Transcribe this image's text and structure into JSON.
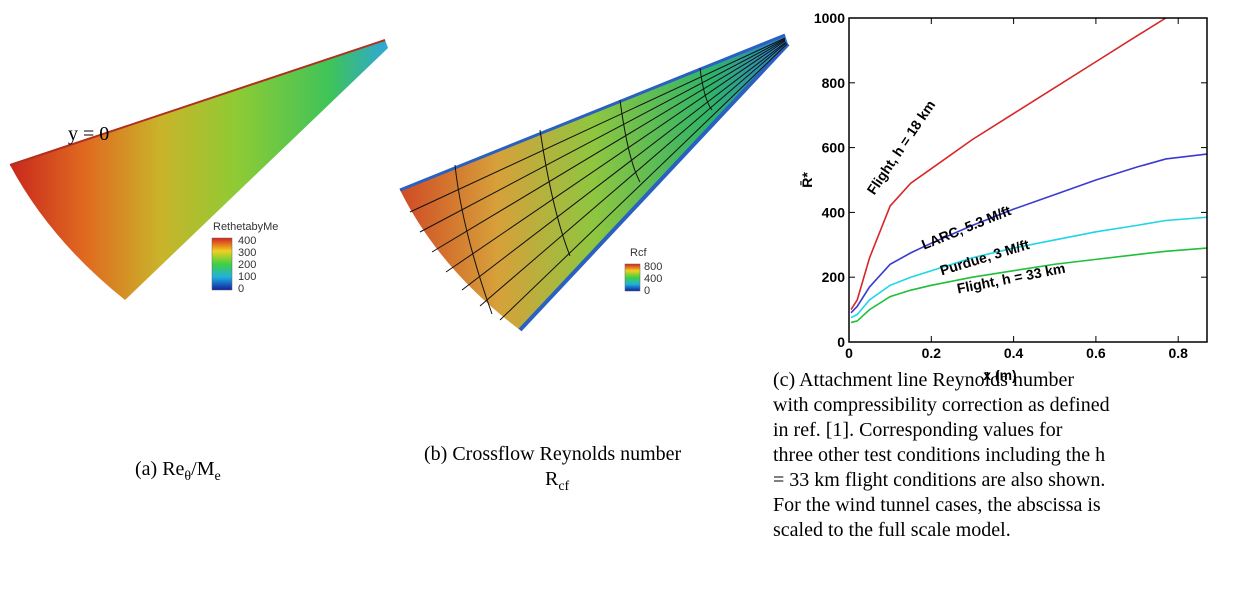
{
  "panel_a": {
    "annotation": "y = 0",
    "colorbar": {
      "title": "RethetabyMe",
      "labels": [
        400,
        300,
        200,
        100,
        0
      ]
    },
    "caption": {
      "prefix": "(a) Re",
      "sub1": "θ",
      "mid": "/M",
      "sub2": "e"
    }
  },
  "panel_b": {
    "colorbar": {
      "title": "Rcf",
      "labels": [
        800,
        400,
        0
      ]
    },
    "caption": {
      "line1": "(b) Crossflow Reynolds number",
      "base": "R",
      "sub": "cf"
    }
  },
  "chart_data": {
    "type": "line",
    "xlabel": "x (m)",
    "ylabel": "R̄*",
    "x": [
      0.005,
      0.02,
      0.05,
      0.1,
      0.15,
      0.2,
      0.3,
      0.4,
      0.5,
      0.6,
      0.7,
      0.77,
      0.87
    ],
    "xlim": [
      0,
      0.87
    ],
    "ylim": [
      0,
      1000
    ],
    "xticks": [
      0,
      0.2,
      0.4,
      0.6,
      0.8
    ],
    "yticks": [
      0,
      200,
      400,
      600,
      800,
      1000
    ],
    "series": [
      {
        "name": "Flight, h = 18 km",
        "color": "#d62728",
        "values": [
          100,
          130,
          260,
          420,
          490,
          535,
          625,
          705,
          785,
          865,
          945,
          1000,
          null
        ]
      },
      {
        "name": "LARC, 5.3 M/ft",
        "color": "#3a3ad0",
        "values": [
          90,
          110,
          170,
          240,
          275,
          305,
          360,
          410,
          455,
          500,
          540,
          565,
          580
        ]
      },
      {
        "name": "Purdue, 3 M/ft",
        "color": "#1ed6e6",
        "values": [
          75,
          85,
          130,
          175,
          200,
          220,
          260,
          290,
          315,
          340,
          360,
          375,
          385
        ]
      },
      {
        "name": "Flight, h = 33 km",
        "color": "#1fbf3a",
        "values": [
          60,
          65,
          100,
          140,
          160,
          175,
          200,
          220,
          240,
          255,
          270,
          280,
          290
        ]
      }
    ],
    "caption": [
      "(c) Attachment line Reynolds number",
      "with compressibility correction as defined",
      "in ref. [1].  Corresponding values for",
      "three other test conditions including the h",
      "= 33 km flight conditions are also shown.",
      "For the wind tunnel cases, the abscissa is",
      "scaled to the full scale model."
    ]
  }
}
